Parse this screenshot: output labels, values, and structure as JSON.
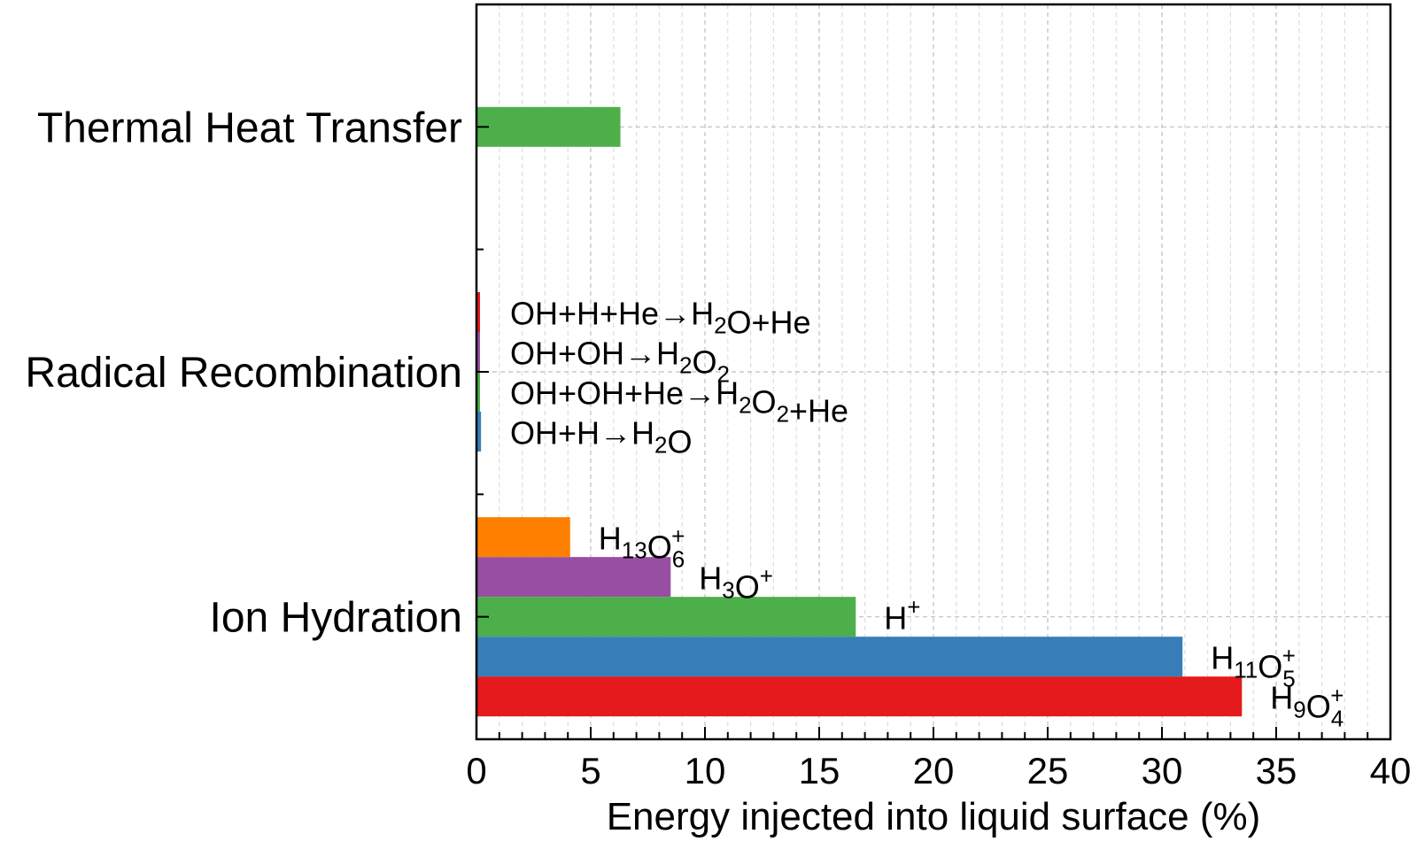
{
  "chart_data": {
    "type": "bar",
    "orientation": "horizontal",
    "xlabel": "Energy injected into liquid surface (%)",
    "ylabel": "",
    "xlim": [
      0,
      40
    ],
    "x_ticks": [
      "0",
      "5",
      "10",
      "15",
      "20",
      "25",
      "30",
      "35",
      "40"
    ],
    "grid": true,
    "categories": [
      "Thermal Heat Transfer",
      "Radical Recombination",
      "Ion Hydration"
    ],
    "groups": [
      {
        "category": "Thermal Heat Transfer",
        "bars": [
          {
            "label": [],
            "value": 6.3,
            "color": "#4daf4a"
          }
        ]
      },
      {
        "category": "Radical Recombination",
        "bars": [
          {
            "label": [
              [
                "OH+H+He→H",
                ""
              ],
              [
                "2",
                "sub"
              ],
              [
                "O+He",
                ""
              ]
            ],
            "value": 0.05,
            "color": "#e41a1c"
          },
          {
            "label": [
              [
                "OH+OH→H",
                ""
              ],
              [
                "2",
                "sub"
              ],
              [
                "O",
                ""
              ],
              [
                "2",
                "sub"
              ]
            ],
            "value": 0.05,
            "color": "#984ea3"
          },
          {
            "label": [
              [
                "OH+OH+He→H",
                ""
              ],
              [
                "2",
                "sub"
              ],
              [
                "O",
                ""
              ],
              [
                "2",
                "sub"
              ],
              [
                "+He",
                ""
              ]
            ],
            "value": 0.15,
            "color": "#4daf4a"
          },
          {
            "label": [
              [
                "OH+H→H",
                ""
              ],
              [
                "2",
                "sub"
              ],
              [
                "O",
                ""
              ]
            ],
            "value": 0.2,
            "color": "#377eb8"
          }
        ]
      },
      {
        "category": "Ion Hydration",
        "bars": [
          {
            "label": [
              [
                "H",
                ""
              ],
              [
                "13",
                "sub"
              ],
              [
                "O",
                ""
              ],
              [
                "6",
                "subsup",
                "+"
              ]
            ],
            "value": 4.1,
            "color": "#ff7f00"
          },
          {
            "label": [
              [
                "H",
                ""
              ],
              [
                "3",
                "sub"
              ],
              [
                "O",
                ""
              ],
              [
                "+",
                "sup"
              ]
            ],
            "value": 8.5,
            "color": "#984ea3"
          },
          {
            "label": [
              [
                "H",
                ""
              ],
              [
                "+",
                "sup"
              ]
            ],
            "value": 16.6,
            "color": "#4daf4a"
          },
          {
            "label": [
              [
                "H",
                ""
              ],
              [
                "11",
                "sub"
              ],
              [
                "O",
                ""
              ],
              [
                "5",
                "subsup",
                "+"
              ]
            ],
            "value": 30.9,
            "color": "#377eb8"
          },
          {
            "label": [
              [
                "H",
                ""
              ],
              [
                "9",
                "sub"
              ],
              [
                "O",
                ""
              ],
              [
                "4",
                "subsup",
                "+"
              ]
            ],
            "value": 33.5,
            "color": "#e41a1c"
          }
        ]
      }
    ]
  }
}
